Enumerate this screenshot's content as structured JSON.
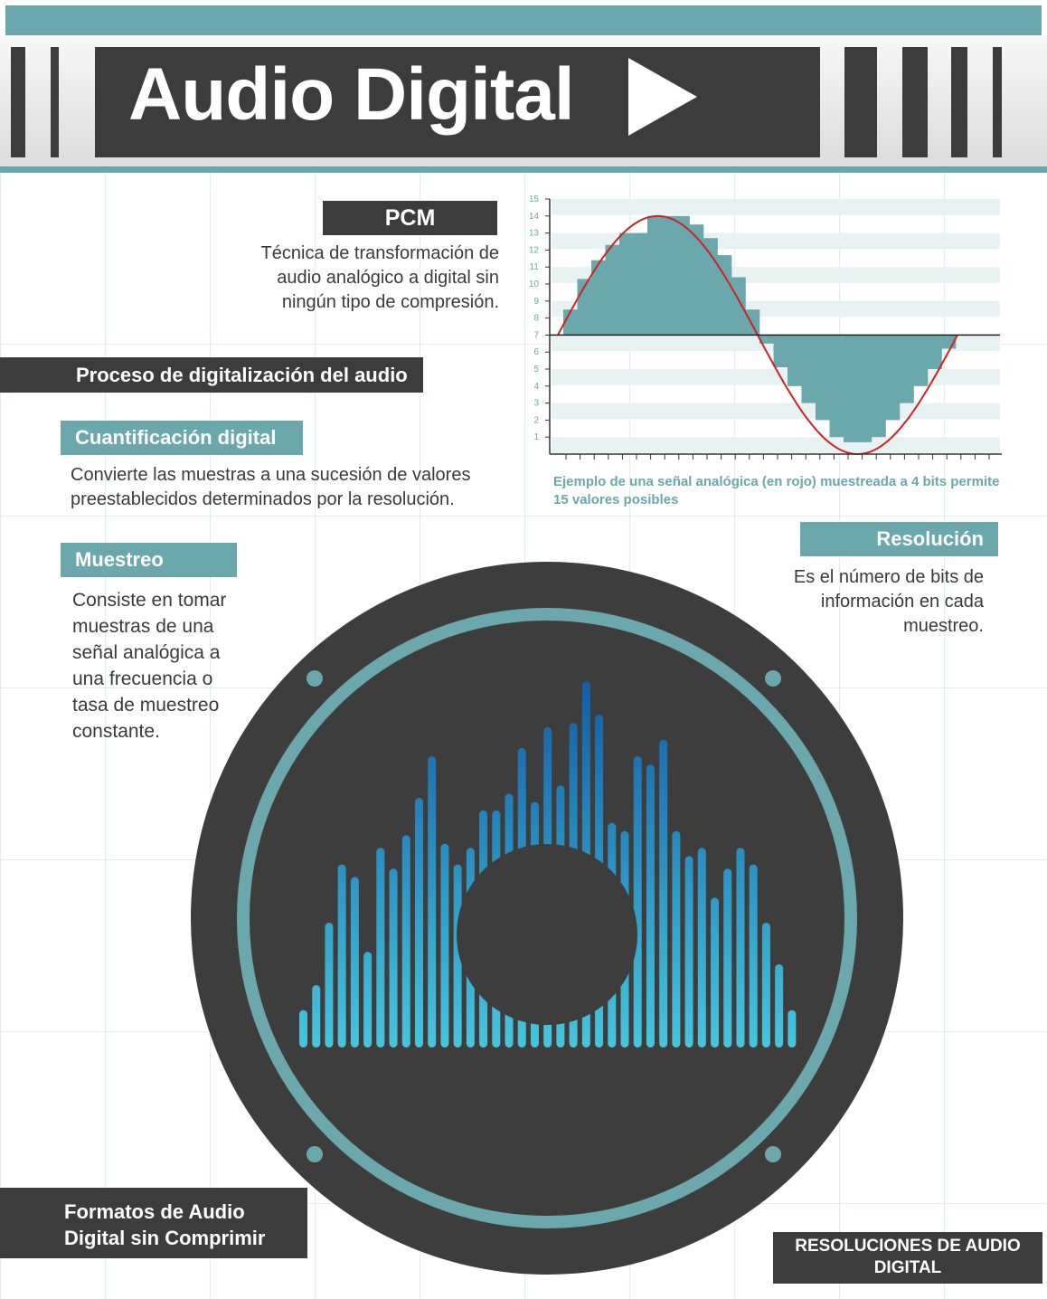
{
  "title": "Audio Digital",
  "pcm": {
    "heading": "PCM",
    "description": "Técnica de transformación de audio analógico a digital sin ningún tipo de compresión."
  },
  "process_heading": "Proceso de digitalización del audio",
  "quantization": {
    "heading": "Cuantificación digital",
    "description": "Convierte las muestras a una sucesión de valores preestablecidos determinados por la resolución."
  },
  "sampling": {
    "heading": "Muestreo",
    "description": "Consiste en tomar muestras de una señal analógica a una frecuencia o tasa de muestreo constante."
  },
  "resolution": {
    "heading": "Resolución",
    "description": "Es el número de bits de información en cada muestreo."
  },
  "formats_heading": "Formatos de Audio Digital sin Comprimir",
  "resolutions_heading": "RESOLUCIONES DE AUDIO DIGITAL",
  "chart_caption": "Ejemplo de una señal analógica (en rojo) muestreada a 4 bits permite 15 valores posibles",
  "chart_data": {
    "type": "bar",
    "yticks": [
      "1",
      "2",
      "3",
      "4",
      "5",
      "6",
      "7",
      "8",
      "9",
      "10",
      "11",
      "12",
      "13",
      "14",
      "15"
    ],
    "ylim": [
      0,
      15
    ],
    "baseline": 7,
    "values": [
      8.5,
      10.3,
      11.4,
      12.3,
      13,
      13,
      14,
      14,
      14,
      13.5,
      12.7,
      11.7,
      10.4,
      8.5,
      6.5,
      5.1,
      4,
      3,
      2,
      1,
      0.7,
      0.7,
      1,
      2,
      3,
      4,
      5,
      6.2
    ],
    "colors": {
      "bars": "#6aa8ad",
      "signal": "#cc2222",
      "axis": "#333333"
    }
  },
  "equalizer": {
    "bar_levels": [
      0.09,
      0.15,
      0.3,
      0.44,
      0.41,
      0.23,
      0.48,
      0.43,
      0.51,
      0.6,
      0.7,
      0.49,
      0.44,
      0.48,
      0.57,
      0.57,
      0.61,
      0.72,
      0.59,
      0.77,
      0.63,
      0.78,
      0.88,
      0.8,
      0.54,
      0.52,
      0.7,
      0.68,
      0.74,
      0.52,
      0.46,
      0.48,
      0.36,
      0.43,
      0.48,
      0.44,
      0.3,
      0.2,
      0.09
    ],
    "colors": {
      "top": "#0b4f9e",
      "bottom": "#47c5dc",
      "ring": "#6aa8ad",
      "speaker": "#3d3d3d"
    }
  }
}
